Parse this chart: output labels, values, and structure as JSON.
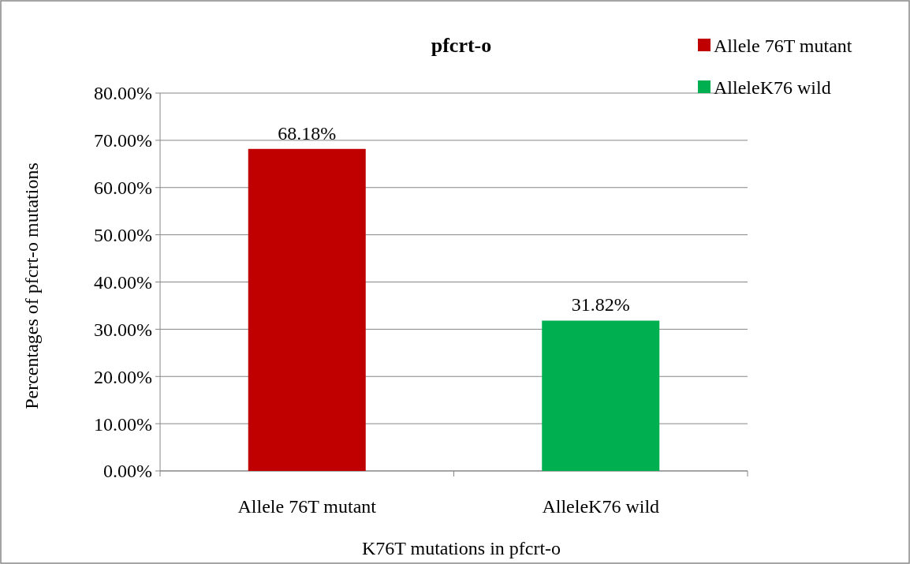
{
  "chart_data": {
    "type": "bar",
    "title": "pfcrt-o",
    "xlabel": "K76T mutations in pfcrt-o",
    "ylabel": "Percentages of pfcrt-o mutations",
    "categories": [
      "Allele 76T mutant",
      "AlleleK76 wild"
    ],
    "stacked": true,
    "series": [
      {
        "name": "Allele 76T mutant",
        "color": "#c00000",
        "values": [
          68.18,
          null
        ],
        "value_labels": [
          "68.18%",
          null
        ]
      },
      {
        "name": "AlleleK76 wild",
        "color": "#00b050",
        "values": [
          null,
          31.82
        ],
        "value_labels": [
          null,
          "31.82%"
        ]
      }
    ],
    "ylim": [
      0,
      80
    ],
    "yticks": [
      {
        "value": 0,
        "label": "0.00%"
      },
      {
        "value": 10,
        "label": "10.00%"
      },
      {
        "value": 20,
        "label": "20.00%"
      },
      {
        "value": 30,
        "label": "30.00%"
      },
      {
        "value": 40,
        "label": "40.00%"
      },
      {
        "value": 50,
        "label": "50.00%"
      },
      {
        "value": 60,
        "label": "60.00%"
      },
      {
        "value": 70,
        "label": "70.00%"
      },
      {
        "value": 80,
        "label": "80.00%"
      }
    ],
    "grid": "y",
    "legend": "top right"
  }
}
